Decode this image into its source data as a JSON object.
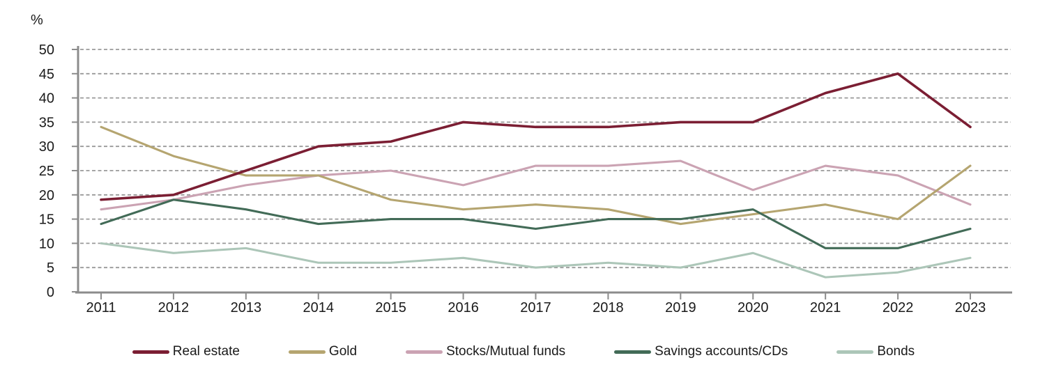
{
  "chart_data": {
    "type": "line",
    "title": "",
    "ylabel": "%",
    "xlabel": "",
    "categories": [
      "2011",
      "2012",
      "2013",
      "2014",
      "2015",
      "2016",
      "2017",
      "2018",
      "2019",
      "2020",
      "2021",
      "2022",
      "2023"
    ],
    "yticks": [
      0,
      5,
      10,
      15,
      20,
      25,
      30,
      35,
      40,
      45,
      50
    ],
    "ylim": [
      0,
      50
    ],
    "grid": "horizontal-dashed",
    "legend_position": "bottom",
    "colors": {
      "axis": "#8c8c8c",
      "gridline": "#999999",
      "text": "#1a1a1a"
    },
    "series": [
      {
        "name": "Real estate",
        "color": "#7b1e33",
        "values": [
          19,
          20,
          25,
          30,
          31,
          35,
          34,
          34,
          35,
          35,
          41,
          45,
          34
        ]
      },
      {
        "name": "Gold",
        "color": "#b5a570",
        "values": [
          34,
          28,
          24,
          24,
          19,
          17,
          18,
          17,
          14,
          16,
          18,
          15,
          26
        ]
      },
      {
        "name": "Stocks/Mutual funds",
        "color": "#cba3b3",
        "values": [
          17,
          19,
          22,
          24,
          25,
          22,
          26,
          26,
          27,
          21,
          26,
          24,
          18
        ]
      },
      {
        "name": "Savings accounts/CDs",
        "color": "#426b57",
        "values": [
          14,
          19,
          17,
          14,
          15,
          15,
          13,
          15,
          15,
          17,
          9,
          9,
          13
        ]
      },
      {
        "name": "Bonds",
        "color": "#acc6b8",
        "values": [
          10,
          8,
          9,
          6,
          6,
          7,
          5,
          6,
          5,
          8,
          3,
          4,
          7
        ]
      }
    ]
  }
}
